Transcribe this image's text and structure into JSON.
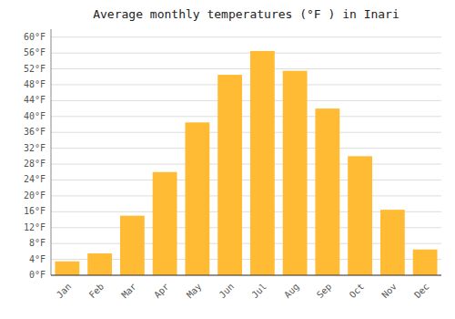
{
  "chart_data": {
    "type": "bar",
    "title": "Average monthly temperatures (°F ) in Inari",
    "categories": [
      "Jan",
      "Feb",
      "Mar",
      "Apr",
      "May",
      "Jun",
      "Jul",
      "Aug",
      "Sep",
      "Oct",
      "Nov",
      "Dec"
    ],
    "values": [
      3.5,
      5.5,
      15.0,
      26.0,
      38.5,
      50.5,
      56.5,
      51.5,
      42.0,
      30.0,
      16.5,
      6.5
    ],
    "color": "#FFBB33",
    "ylim": [
      0,
      62
    ],
    "yticks": [
      {
        "value": 0,
        "label": "0°F"
      },
      {
        "value": 4,
        "label": "4°F"
      },
      {
        "value": 8,
        "label": "8°F"
      },
      {
        "value": 12,
        "label": "12°F"
      },
      {
        "value": 16,
        "label": "16°F"
      },
      {
        "value": 20,
        "label": "20°F"
      },
      {
        "value": 24,
        "label": "24°F"
      },
      {
        "value": 28,
        "label": "28°F"
      },
      {
        "value": 32,
        "label": "32°F"
      },
      {
        "value": 36,
        "label": "36°F"
      },
      {
        "value": 40,
        "label": "40°F"
      },
      {
        "value": 44,
        "label": "44°F"
      },
      {
        "value": 48,
        "label": "48°F"
      },
      {
        "value": 52,
        "label": "52°F"
      },
      {
        "value": 56,
        "label": "56°F"
      },
      {
        "value": 60,
        "label": "60°F"
      }
    ],
    "grid": true
  }
}
